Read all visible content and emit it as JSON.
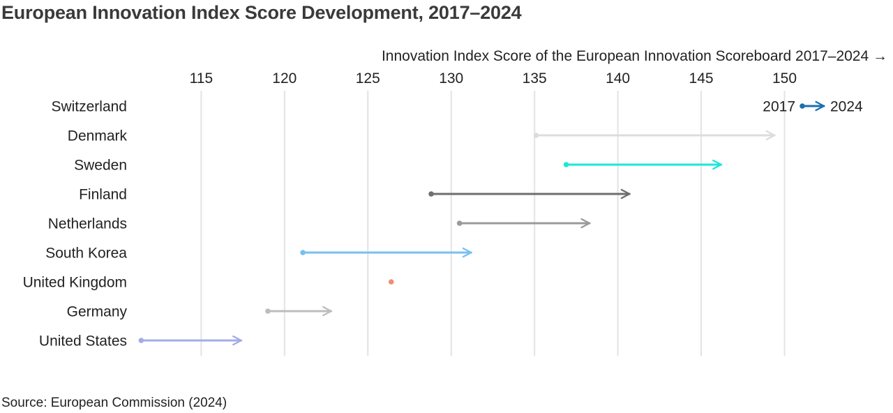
{
  "page": {
    "title": "European Innovation Index Score Development, 2017–2024",
    "source": "Source: European Commission (2024)"
  },
  "chart_data": {
    "type": "dumbbell",
    "title": "European Innovation Index Score Development, 2017–2024",
    "xlabel": "Innovation Index Score of the European Innovation Scoreboard 2017–2024 →",
    "xlim": [
      111.3,
      156.3
    ],
    "xticks": [
      115,
      120,
      125,
      130,
      135,
      140,
      145,
      150
    ],
    "grid": true,
    "legend": {
      "position": "top-right",
      "start_label": "2017",
      "end_label": "2024",
      "color": "#1a70b0"
    },
    "rows": [
      {
        "label": "Switzerland",
        "start": null,
        "end": null,
        "color": "#1a70b0"
      },
      {
        "label": "Denmark",
        "start": 135.1,
        "end": 149.4,
        "color": "#dcdcdc"
      },
      {
        "label": "Sweden",
        "start": 136.9,
        "end": 146.2,
        "color": "#1ae8d8"
      },
      {
        "label": "Finland",
        "start": 128.8,
        "end": 140.7,
        "color": "#6e6e6e"
      },
      {
        "label": "Netherlands",
        "start": 130.5,
        "end": 138.3,
        "color": "#9a9a9a"
      },
      {
        "label": "South Korea",
        "start": 121.1,
        "end": 131.2,
        "color": "#78bff2"
      },
      {
        "label": "United Kingdom",
        "start": 126.4,
        "end": 126.4,
        "color": "#f28b76"
      },
      {
        "label": "Germany",
        "start": 119.0,
        "end": 122.8,
        "color": "#bdbdbd"
      },
      {
        "label": "United States",
        "start": 111.4,
        "end": 117.4,
        "color": "#a2ace8"
      }
    ]
  }
}
